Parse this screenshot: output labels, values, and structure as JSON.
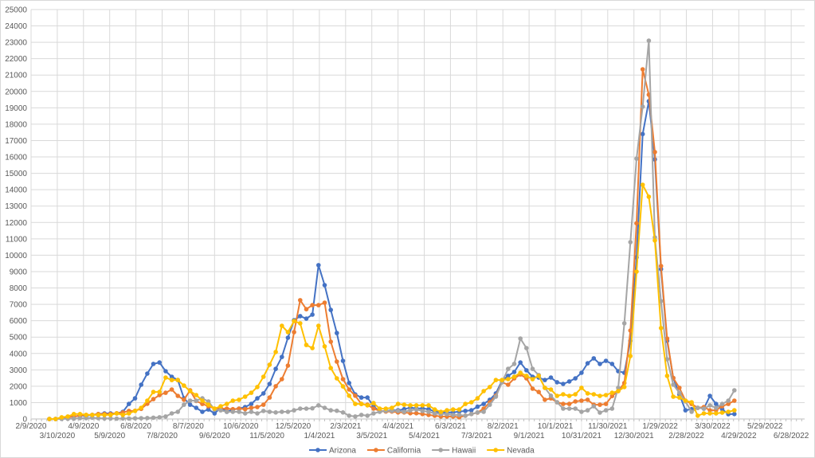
{
  "chart_data": {
    "type": "line",
    "title": "",
    "xlabel": "",
    "ylabel": "",
    "ylim": [
      0,
      25000
    ],
    "y_major_unit": 1000,
    "grid": true,
    "legend_position": "bottom",
    "x_axis": {
      "min_date": "2/9/2020",
      "tick_interval_days": 30,
      "tick_labels": [
        "2/9/2020",
        "3/10/2020",
        "4/9/2020",
        "5/9/2020",
        "6/8/2020",
        "7/8/2020",
        "8/7/2020",
        "9/6/2020",
        "10/6/2020",
        "11/5/2020",
        "12/5/2020",
        "1/4/2021",
        "2/3/2021",
        "3/5/2021",
        "4/4/2021",
        "5/4/2021",
        "6/3/2021",
        "7/3/2021",
        "8/2/2021",
        "9/1/2021",
        "10/1/2021",
        "10/31/2021",
        "11/30/2021",
        "12/30/2021",
        "1/29/2022",
        "2/28/2022",
        "3/30/2022",
        "4/29/2022",
        "5/29/2022",
        "6/28/2022"
      ]
    },
    "y_tick_labels": [
      "0",
      "1000",
      "2000",
      "3000",
      "4000",
      "5000",
      "6000",
      "7000",
      "8000",
      "9000",
      "10000",
      "11000",
      "12000",
      "13000",
      "14000",
      "15000",
      "16000",
      "17000",
      "18000",
      "19000",
      "20000",
      "21000",
      "22000",
      "23000",
      "24000",
      "25000"
    ],
    "x_start_date": "3/1/2020",
    "x_step_days": 7,
    "series": [
      {
        "name": "Arizona",
        "color": "#4472C4",
        "values": [
          0,
          0,
          50,
          100,
          150,
          200,
          200,
          250,
          300,
          340,
          340,
          340,
          440,
          920,
          1260,
          2090,
          2770,
          3360,
          3450,
          2920,
          2580,
          2380,
          1260,
          870,
          680,
          440,
          580,
          340,
          680,
          440,
          580,
          630,
          730,
          920,
          1260,
          1560,
          2140,
          3060,
          3790,
          4960,
          6030,
          6280,
          6130,
          6370,
          9390,
          8170,
          6660,
          5250,
          3550,
          2200,
          1500,
          1310,
          1310,
          780,
          450,
          500,
          530,
          530,
          600,
          690,
          640,
          640,
          600,
          450,
          400,
          400,
          400,
          450,
          490,
          530,
          750,
          920,
          1170,
          1560,
          2330,
          2630,
          2870,
          3450,
          2970,
          2580,
          2530,
          2380,
          2530,
          2240,
          2140,
          2290,
          2480,
          2820,
          3400,
          3700,
          3360,
          3550,
          3360,
          2920,
          2820,
          4770,
          9870,
          17400,
          19400,
          15850,
          9150,
          4770,
          2500,
          1500,
          530,
          600,
          680,
          630,
          1410,
          920,
          600,
          290,
          300
        ]
      },
      {
        "name": "California",
        "color": "#ED7D31",
        "values": [
          0,
          0,
          30,
          100,
          150,
          200,
          250,
          250,
          300,
          300,
          300,
          350,
          400,
          490,
          500,
          620,
          930,
          1210,
          1460,
          1600,
          1800,
          1410,
          1170,
          1750,
          1100,
          920,
          780,
          630,
          630,
          630,
          600,
          630,
          600,
          680,
          730,
          870,
          1310,
          2000,
          2430,
          3260,
          5300,
          7250,
          6700,
          6950,
          6950,
          7100,
          4720,
          3500,
          2430,
          1800,
          1420,
          920,
          870,
          630,
          500,
          450,
          450,
          400,
          400,
          350,
          350,
          300,
          250,
          200,
          150,
          150,
          150,
          100,
          200,
          300,
          390,
          630,
          1020,
          1420,
          2240,
          2090,
          2480,
          2720,
          2480,
          1850,
          1650,
          1170,
          1260,
          1020,
          920,
          920,
          1070,
          1120,
          1170,
          870,
          870,
          920,
          1400,
          1700,
          2200,
          5400,
          11950,
          21350,
          19800,
          16300,
          9340,
          4910,
          2500,
          1900,
          1120,
          920,
          680,
          730,
          530,
          530,
          780,
          920,
          1120
        ]
      },
      {
        "name": "Hawaii",
        "color": "#A5A5A5",
        "values": [
          0,
          0,
          0,
          10,
          20,
          50,
          50,
          80,
          50,
          30,
          30,
          20,
          30,
          30,
          40,
          50,
          60,
          80,
          100,
          150,
          340,
          440,
          870,
          1120,
          1120,
          1260,
          1070,
          580,
          530,
          440,
          440,
          440,
          340,
          440,
          340,
          490,
          440,
          400,
          440,
          440,
          530,
          630,
          630,
          650,
          830,
          680,
          530,
          500,
          400,
          200,
          150,
          250,
          200,
          340,
          440,
          490,
          490,
          490,
          440,
          530,
          580,
          490,
          440,
          340,
          300,
          300,
          250,
          250,
          200,
          300,
          400,
          440,
          870,
          1360,
          2240,
          3060,
          3360,
          4910,
          4330,
          3060,
          2680,
          1900,
          1420,
          1020,
          630,
          630,
          630,
          440,
          530,
          780,
          390,
          530,
          630,
          1900,
          5840,
          10800,
          15900,
          19070,
          23100,
          11090,
          7200,
          3650,
          2090,
          1600,
          1070,
          440,
          680,
          630,
          830,
          680,
          920,
          1120,
          1750
        ]
      },
      {
        "name": "Nevada",
        "color": "#FFC000",
        "values": [
          0,
          0,
          100,
          150,
          300,
          300,
          250,
          250,
          250,
          250,
          250,
          340,
          250,
          340,
          490,
          680,
          1120,
          1650,
          1650,
          2530,
          2380,
          2380,
          2040,
          1700,
          1460,
          1120,
          870,
          630,
          780,
          920,
          1120,
          1170,
          1360,
          1600,
          1950,
          2580,
          3310,
          4090,
          5690,
          5300,
          5980,
          5840,
          4520,
          4330,
          5690,
          4430,
          3110,
          2480,
          1990,
          1420,
          920,
          920,
          830,
          970,
          630,
          630,
          680,
          920,
          870,
          830,
          830,
          830,
          830,
          580,
          440,
          530,
          580,
          580,
          920,
          1020,
          1260,
          1700,
          1950,
          2380,
          2380,
          2430,
          2580,
          2820,
          2630,
          2430,
          2630,
          1900,
          1800,
          1410,
          1510,
          1410,
          1510,
          1900,
          1560,
          1510,
          1410,
          1460,
          1600,
          1700,
          1950,
          3840,
          9000,
          14300,
          13570,
          10900,
          5550,
          2630,
          1360,
          1310,
          1120,
          1020,
          200,
          340,
          340,
          340,
          390,
          440,
          530
        ]
      }
    ]
  }
}
